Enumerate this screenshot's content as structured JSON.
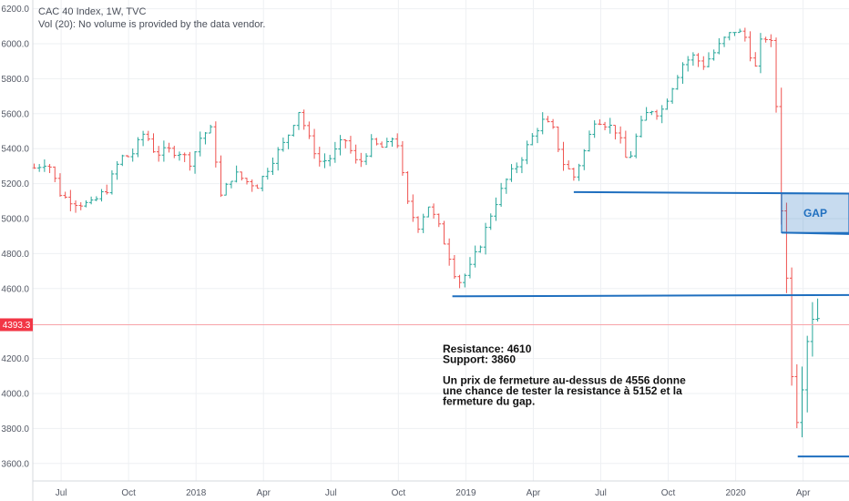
{
  "legend": {
    "line1": "CAC 40 Index, 1W, TVC",
    "line2": "Vol (20): No volume is provided by the data vendor."
  },
  "chart_data": {
    "type": "ohlc-bar",
    "title": "",
    "ylim": [
      3500,
      6250
    ],
    "y_ticks": [
      "6200.0",
      "6000.0",
      "5800.0",
      "5600.0",
      "5400.0",
      "5200.0",
      "5000.0",
      "4800.0",
      "4600.0",
      "4200.0",
      "4000.0",
      "3800.0",
      "3600.0"
    ],
    "x_ticks": [
      "Jul",
      "Oct",
      "2018",
      "Apr",
      "Jul",
      "Oct",
      "2019",
      "Apr",
      "Jul",
      "Oct",
      "2020",
      "Apr"
    ],
    "x_tick_values": [
      2017.5,
      2017.75,
      2018.0,
      2018.25,
      2018.5,
      2018.75,
      2019.0,
      2019.25,
      2019.5,
      2019.75,
      2020.0,
      2020.25
    ],
    "xlim": [
      2017.395,
      2020.42
    ],
    "current_price": {
      "value": 4393.3,
      "label": "4393.3",
      "color": "#f23645"
    },
    "up_color": "#26a69a",
    "down_color": "#ef5350",
    "close_path": [
      [
        2017.4,
        5290
      ],
      [
        2017.45,
        5330
      ],
      [
        2017.5,
        5130
      ],
      [
        2017.56,
        5090
      ],
      [
        2017.61,
        5080
      ],
      [
        2017.67,
        5170
      ],
      [
        2017.72,
        5350
      ],
      [
        2017.76,
        5360
      ],
      [
        2017.81,
        5500
      ],
      [
        2017.85,
        5370
      ],
      [
        2017.9,
        5390
      ],
      [
        2017.94,
        5380
      ],
      [
        2017.98,
        5320
      ],
      [
        2018.02,
        5480
      ],
      [
        2018.06,
        5510
      ],
      [
        2018.09,
        5120
      ],
      [
        2018.14,
        5260
      ],
      [
        2018.19,
        5210
      ],
      [
        2018.23,
        5190
      ],
      [
        2018.28,
        5330
      ],
      [
        2018.33,
        5440
      ],
      [
        2018.38,
        5620
      ],
      [
        2018.42,
        5450
      ],
      [
        2018.46,
        5320
      ],
      [
        2018.5,
        5350
      ],
      [
        2018.55,
        5460
      ],
      [
        2018.6,
        5300
      ],
      [
        2018.65,
        5430
      ],
      [
        2018.7,
        5400
      ],
      [
        2018.74,
        5490
      ],
      [
        2018.78,
        5100
      ],
      [
        2018.82,
        4950
      ],
      [
        2018.86,
        5080
      ],
      [
        2018.9,
        4950
      ],
      [
        2018.94,
        4780
      ],
      [
        2018.97,
        4630
      ],
      [
        2019.01,
        4700
      ],
      [
        2019.06,
        4880
      ],
      [
        2019.1,
        5060
      ],
      [
        2019.15,
        5220
      ],
      [
        2019.2,
        5330
      ],
      [
        2019.24,
        5450
      ],
      [
        2019.28,
        5560
      ],
      [
        2019.32,
        5520
      ],
      [
        2019.36,
        5320
      ],
      [
        2019.4,
        5240
      ],
      [
        2019.44,
        5390
      ],
      [
        2019.48,
        5580
      ],
      [
        2019.52,
        5540
      ],
      [
        2019.56,
        5500
      ],
      [
        2019.6,
        5310
      ],
      [
        2019.64,
        5510
      ],
      [
        2019.68,
        5630
      ],
      [
        2019.72,
        5600
      ],
      [
        2019.76,
        5740
      ],
      [
        2019.8,
        5880
      ],
      [
        2019.84,
        5930
      ],
      [
        2019.88,
        5880
      ],
      [
        2019.92,
        5950
      ],
      [
        2019.96,
        6030
      ],
      [
        2020.0,
        6080
      ],
      [
        2020.04,
        6030
      ],
      [
        2020.07,
        5840
      ],
      [
        2020.1,
        6060
      ],
      [
        2020.14,
        5980
      ],
      [
        2020.16,
        5310
      ],
      [
        2020.19,
        4610
      ],
      [
        2020.21,
        4100
      ],
      [
        2020.23,
        3860
      ],
      [
        2020.26,
        4300
      ],
      [
        2020.29,
        4500
      ],
      [
        2020.32,
        4380
      ]
    ],
    "annotations": {
      "lines": [
        "Resistance: 4610",
        "Support: 3860",
        "",
        "Un prix de fermeture au-dessus de 4556 donne",
        "une chance de tester la resistance à 5152 et la",
        "fermeture du gap."
      ],
      "gap_label": "GAP",
      "line_color": "#1f6fbf",
      "resistance_line": {
        "x": [
          2019.4,
          2020.42
        ],
        "y": [
          5152,
          5143
        ]
      },
      "gap_box": {
        "x": [
          2020.17,
          2020.42
        ],
        "y": [
          4920,
          5143
        ]
      },
      "support_4556_line": {
        "x": [
          2018.95,
          2020.42
        ],
        "y": [
          4556,
          4563
        ]
      },
      "support_line": {
        "x": [
          2020.23,
          2020.42
        ],
        "y": [
          3640,
          3640
        ]
      }
    }
  }
}
